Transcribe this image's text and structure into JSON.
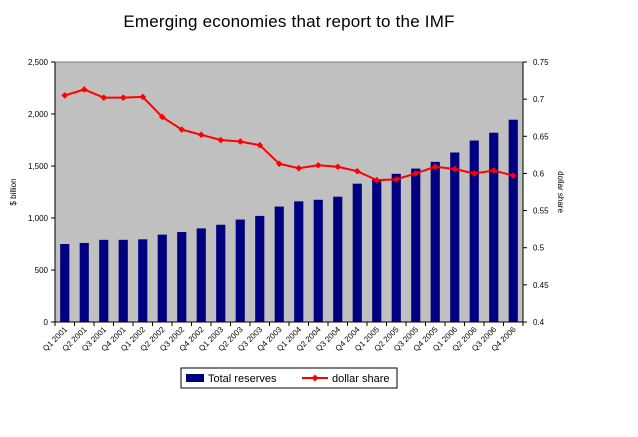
{
  "chart_data": {
    "type": "bar",
    "title": "Emerging economies that report to the IMF",
    "ylabel": "$ billion",
    "y2label": "dollar share",
    "categories": [
      "Q1 2001",
      "Q2 2001",
      "Q3 2001",
      "Q4 2001",
      "Q1 2002",
      "Q2 2002",
      "Q3 2002",
      "Q4 2002",
      "Q1 2003",
      "Q2 2003",
      "Q3 2003",
      "Q4 2003",
      "Q1 2004",
      "Q2 2004",
      "Q3 2004",
      "Q4 2004",
      "Q1 2005",
      "Q2 2005",
      "Q3 2005",
      "Q4 2005",
      "Q1 2006",
      "Q2 2006",
      "Q3 2006",
      "Q4 2006"
    ],
    "ylim": [
      0,
      2500
    ],
    "y_ticks": [
      "0",
      "500",
      "1,000",
      "1,500",
      "2,000",
      "2,500"
    ],
    "y2lim": [
      0.4,
      0.75
    ],
    "y2_ticks": [
      "0.4",
      "0.45",
      "0.5",
      "0.55",
      "0.6",
      "0.65",
      "0.7",
      "0.75"
    ],
    "grid": false,
    "legend_position": "bottom",
    "series": [
      {
        "name": "Total reserves",
        "type": "bar",
        "axis": "left",
        "color": "#000080",
        "values": [
          750,
          760,
          790,
          790,
          795,
          840,
          865,
          900,
          935,
          985,
          1020,
          1110,
          1160,
          1175,
          1205,
          1330,
          1370,
          1425,
          1475,
          1540,
          1630,
          1745,
          1820,
          1945
        ]
      },
      {
        "name": "dollar share",
        "type": "line",
        "axis": "right",
        "color": "#FF0000",
        "values": [
          0.705,
          0.713,
          0.702,
          0.702,
          0.703,
          0.676,
          0.659,
          0.652,
          0.645,
          0.643,
          0.638,
          0.613,
          0.607,
          0.611,
          0.609,
          0.603,
          0.591,
          0.592,
          0.6,
          0.609,
          0.606,
          0.6,
          0.604,
          0.597
        ]
      }
    ],
    "colors": {
      "plot_area": "#C0C0C0",
      "axis": "#000000",
      "marker_fill": "#FF0000"
    }
  }
}
